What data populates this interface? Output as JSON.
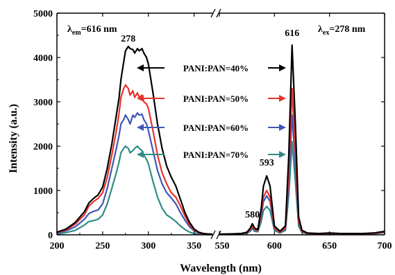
{
  "chart_data": {
    "type": "line",
    "title": "",
    "xlabel": "Wavelength (nm)",
    "ylabel": "Intensity (a.u.)",
    "ylim": [
      0,
      5000
    ],
    "y_ticks": [
      "0",
      "1000",
      "2000",
      "3000",
      "4000",
      "5000"
    ],
    "axis_break": true,
    "x_segments": [
      {
        "range": [
          200,
          370
        ],
        "ticks": [
          "200",
          "250",
          "300",
          "350"
        ],
        "tick_values": [
          200,
          250,
          300,
          350
        ]
      },
      {
        "range": [
          550,
          700
        ],
        "ticks": [
          "550",
          "600",
          "650",
          "700"
        ],
        "tick_values": [
          550,
          600,
          650,
          700
        ]
      }
    ],
    "annotations": [
      {
        "pre": "λ",
        "sub": "em",
        "post": "=616 nm"
      },
      {
        "pre": "λ",
        "sub": "ex",
        "post": "=278 nm"
      }
    ],
    "peak_labels": [
      {
        "text": "278",
        "x": 278,
        "y": 4300
      },
      {
        "text": "593",
        "x": 593,
        "y": 1500
      },
      {
        "text": "580",
        "x": 580,
        "y": 330
      },
      {
        "text": "616",
        "x": 616,
        "y": 4420
      }
    ],
    "legend": {
      "placement": "center",
      "arrows": true
    },
    "series": [
      {
        "name": "PANI:PAN=40%",
        "color": "#000000",
        "excitation": {
          "x": [
            200,
            210,
            220,
            230,
            235,
            240,
            245,
            250,
            255,
            260,
            265,
            268,
            270,
            273,
            275,
            278,
            280,
            283,
            285,
            288,
            290,
            293,
            295,
            298,
            300,
            305,
            310,
            315,
            320,
            325,
            330,
            335,
            340,
            345,
            350,
            355,
            360,
            365,
            370
          ],
          "y": [
            60,
            130,
            280,
            520,
            720,
            820,
            900,
            1080,
            1500,
            2050,
            2700,
            3100,
            3500,
            3900,
            4150,
            4250,
            4200,
            4180,
            4100,
            4200,
            4150,
            4200,
            4100,
            4000,
            3850,
            3200,
            2500,
            1950,
            1550,
            1300,
            1100,
            800,
            500,
            280,
            130,
            60,
            30,
            20,
            15
          ]
        },
        "emission": {
          "x": [
            550,
            560,
            570,
            575,
            578,
            580,
            582,
            585,
            588,
            590,
            593,
            596,
            600,
            605,
            610,
            613,
            616,
            619,
            622,
            625,
            630,
            640,
            650,
            660,
            670,
            680,
            690,
            700
          ],
          "y": [
            15,
            20,
            30,
            60,
            150,
            250,
            150,
            120,
            600,
            1100,
            1330,
            1100,
            200,
            80,
            200,
            1800,
            4280,
            2500,
            400,
            100,
            40,
            30,
            40,
            30,
            30,
            30,
            40,
            80
          ]
        }
      },
      {
        "name": "PANI:PAN=50%",
        "color": "#e8322c",
        "excitation": {
          "x": [
            200,
            210,
            220,
            230,
            235,
            240,
            245,
            250,
            255,
            260,
            265,
            268,
            270,
            273,
            275,
            278,
            280,
            283,
            285,
            288,
            290,
            293,
            295,
            298,
            300,
            305,
            310,
            315,
            320,
            325,
            330,
            335,
            340,
            345,
            350,
            355,
            360,
            365,
            370
          ],
          "y": [
            50,
            110,
            240,
            450,
            650,
            750,
            820,
            950,
            1300,
            1800,
            2350,
            2750,
            3100,
            3300,
            3380,
            3300,
            3150,
            3250,
            3100,
            3200,
            3100,
            3150,
            3000,
            2950,
            2850,
            2350,
            1800,
            1400,
            1150,
            950,
            850,
            650,
            420,
            230,
            110,
            50,
            25,
            18,
            12
          ]
        },
        "emission": {
          "x": [
            550,
            560,
            570,
            575,
            578,
            580,
            582,
            585,
            588,
            590,
            593,
            596,
            600,
            605,
            610,
            613,
            616,
            619,
            622,
            625,
            630,
            640,
            650,
            660,
            670,
            680,
            690,
            700
          ],
          "y": [
            12,
            18,
            25,
            50,
            120,
            200,
            120,
            100,
            500,
            850,
            1000,
            850,
            160,
            60,
            160,
            1400,
            3300,
            1900,
            300,
            80,
            35,
            25,
            35,
            25,
            25,
            25,
            30,
            70
          ]
        }
      },
      {
        "name": "PANI:PAN=60%",
        "color": "#3f57b5",
        "excitation": {
          "x": [
            200,
            210,
            220,
            230,
            235,
            240,
            245,
            250,
            255,
            260,
            265,
            268,
            270,
            273,
            275,
            278,
            280,
            283,
            285,
            288,
            290,
            293,
            295,
            298,
            300,
            305,
            310,
            315,
            320,
            325,
            330,
            335,
            340,
            345,
            350,
            355,
            360,
            365,
            370
          ],
          "y": [
            40,
            90,
            180,
            350,
            480,
            530,
            560,
            700,
            1050,
            1500,
            1950,
            2250,
            2500,
            2600,
            2700,
            2600,
            2500,
            2700,
            2650,
            2750,
            2700,
            2720,
            2600,
            2500,
            2350,
            1900,
            1450,
            1150,
            950,
            830,
            700,
            500,
            330,
            180,
            90,
            40,
            20,
            15,
            10
          ]
        },
        "emission": {
          "x": [
            550,
            560,
            570,
            575,
            578,
            580,
            582,
            585,
            588,
            590,
            593,
            596,
            600,
            605,
            610,
            613,
            616,
            619,
            622,
            625,
            630,
            640,
            650,
            660,
            670,
            680,
            690,
            700
          ],
          "y": [
            10,
            15,
            22,
            45,
            100,
            180,
            100,
            90,
            420,
            750,
            880,
            750,
            140,
            50,
            140,
            1200,
            2700,
            1600,
            250,
            70,
            30,
            22,
            30,
            22,
            22,
            22,
            28,
            60
          ]
        }
      },
      {
        "name": "PANI:PAN=70%",
        "color": "#2e8c84",
        "excitation": {
          "x": [
            200,
            210,
            220,
            230,
            235,
            240,
            245,
            250,
            255,
            260,
            265,
            268,
            270,
            273,
            275,
            278,
            280,
            283,
            285,
            288,
            290,
            293,
            295,
            298,
            300,
            305,
            310,
            315,
            320,
            325,
            330,
            335,
            340,
            345,
            350,
            355,
            360,
            365,
            370
          ],
          "y": [
            20,
            50,
            100,
            220,
            300,
            320,
            350,
            450,
            700,
            1050,
            1400,
            1650,
            1850,
            1950,
            2000,
            1950,
            1850,
            1900,
            1950,
            2000,
            1950,
            1900,
            1800,
            1700,
            1600,
            1200,
            850,
            600,
            450,
            380,
            300,
            200,
            120,
            60,
            30,
            15,
            10,
            8,
            5
          ]
        },
        "emission": {
          "x": [
            550,
            560,
            570,
            575,
            578,
            580,
            582,
            585,
            588,
            590,
            593,
            596,
            600,
            605,
            610,
            613,
            616,
            619,
            622,
            625,
            630,
            640,
            650,
            660,
            670,
            680,
            690,
            700
          ],
          "y": [
            8,
            12,
            18,
            35,
            80,
            140,
            80,
            70,
            300,
            550,
            640,
            550,
            100,
            40,
            100,
            900,
            2100,
            1200,
            200,
            50,
            25,
            18,
            25,
            18,
            18,
            18,
            22,
            50
          ]
        }
      }
    ]
  }
}
